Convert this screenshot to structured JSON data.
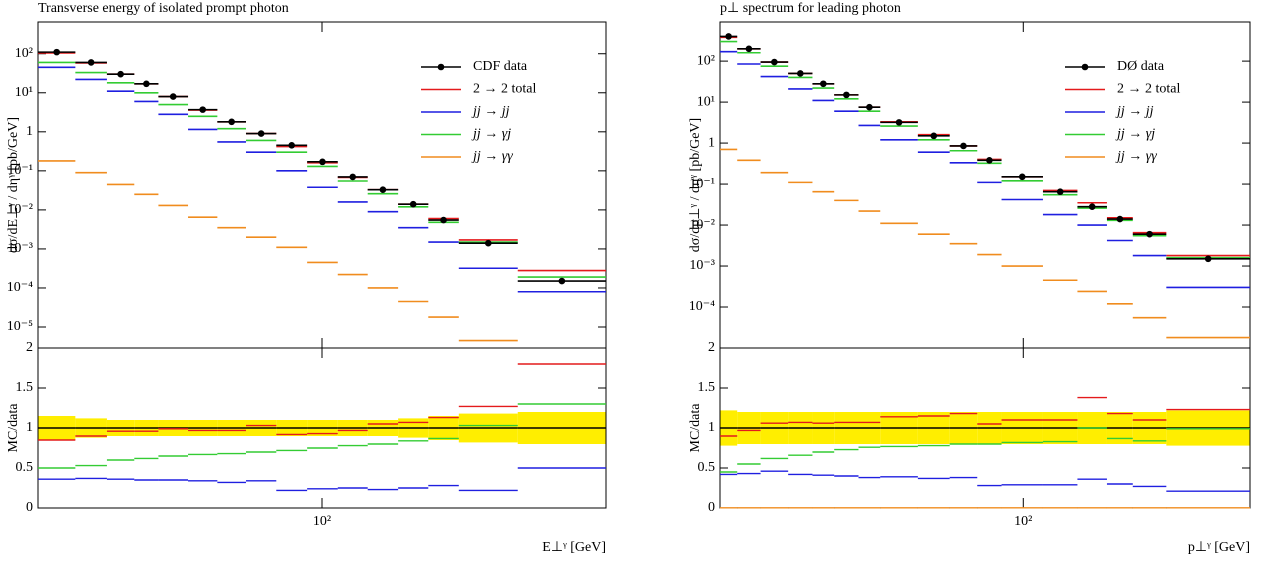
{
  "chart_data": [
    {
      "type": "histogram",
      "title": "Transverse energy of isolated prompt photon",
      "xlabel": "E⊥ᵞ [GeV]",
      "ylabel": "dσ/dE⊥ᵞ / dηᵞ [pb/GeV]",
      "log_x": true,
      "log_y": true,
      "legend": "upper right",
      "bins": [
        25,
        30,
        35,
        40,
        45,
        52,
        60,
        69,
        80,
        93,
        108,
        125,
        145,
        168,
        195,
        260,
        400
      ],
      "xlim": [
        25,
        400
      ],
      "xticks": [
        {
          "value": 100,
          "label": "10²"
        }
      ],
      "ylim": [
        2.9e-06,
        650
      ],
      "yticks": [
        {
          "value": 1e-05,
          "label": "10⁻⁵"
        },
        {
          "value": 0.0001,
          "label": "10⁻⁴"
        },
        {
          "value": 0.001,
          "label": "10⁻³"
        },
        {
          "value": 0.01,
          "label": "10⁻²"
        },
        {
          "value": 0.1,
          "label": "10⁻¹"
        },
        1,
        {
          "value": 10,
          "label": "10¹"
        },
        {
          "value": 100,
          "label": "10²"
        }
      ],
      "series": [
        {
          "name": "CDF data",
          "color": "#000000",
          "marker": true,
          "values": [
            110,
            60,
            30,
            17,
            8,
            3.7,
            1.8,
            0.9,
            0.45,
            0.17,
            0.07,
            0.033,
            0.014,
            0.0055,
            0.0014,
            0.00015
          ]
        },
        {
          "name": "2 → 2 total",
          "color": "#e41a1c",
          "values": [
            105,
            58,
            30,
            17,
            8,
            3.6,
            1.8,
            0.9,
            0.42,
            0.16,
            0.068,
            0.033,
            0.014,
            0.006,
            0.0017,
            0.00028
          ]
        },
        {
          "name": "jj → jj",
          "color": "#1f1fe0",
          "values": [
            45,
            22,
            11,
            6,
            2.8,
            1.15,
            0.55,
            0.3,
            0.1,
            0.038,
            0.016,
            0.009,
            0.0035,
            0.0015,
            0.00032,
            8e-05
          ]
        },
        {
          "name": "jj → γj",
          "color": "#33cc33",
          "values": [
            60,
            33,
            18,
            10,
            5,
            2.5,
            1.2,
            0.6,
            0.3,
            0.13,
            0.055,
            0.026,
            0.012,
            0.0048,
            0.0015,
            0.00019
          ]
        },
        {
          "name": "jj → γγ",
          "color": "#f08c1e",
          "values": [
            0.18,
            0.09,
            0.045,
            0.025,
            0.013,
            0.0065,
            0.0035,
            0.002,
            0.0011,
            0.00045,
            0.00022,
            0.0001,
            4.5e-05,
            1.8e-05,
            4.5e-06,
            null
          ]
        }
      ],
      "ratio": {
        "ylabel": "MC/data",
        "ylim": [
          0,
          2
        ],
        "yticks": [
          0,
          0.5,
          1,
          1.5,
          2
        ],
        "band": {
          "color": "#ffee00",
          "lower": [
            0.85,
            0.88,
            0.9,
            0.9,
            0.9,
            0.9,
            0.9,
            0.9,
            0.9,
            0.9,
            0.9,
            0.9,
            0.88,
            0.85,
            0.82,
            0.8
          ],
          "upper": [
            1.15,
            1.12,
            1.1,
            1.1,
            1.1,
            1.1,
            1.1,
            1.1,
            1.1,
            1.1,
            1.1,
            1.1,
            1.12,
            1.15,
            1.18,
            1.2
          ]
        },
        "series": [
          {
            "color": "#000000",
            "values": [
              1,
              1,
              1,
              1,
              1,
              1,
              1,
              1,
              1,
              1,
              1,
              1,
              1,
              1,
              1,
              1
            ]
          },
          {
            "color": "#e41a1c",
            "values": [
              0.85,
              0.9,
              0.96,
              0.96,
              0.99,
              0.97,
              0.97,
              1.03,
              0.92,
              0.93,
              0.97,
              1.05,
              1.07,
              1.13,
              1.27,
              1.8
            ]
          },
          {
            "color": "#1f1fe0",
            "values": [
              0.36,
              0.37,
              0.36,
              0.35,
              0.35,
              0.34,
              0.32,
              0.34,
              0.22,
              0.24,
              0.25,
              0.23,
              0.25,
              0.28,
              0.22,
              0.5
            ]
          },
          {
            "color": "#33cc33",
            "values": [
              0.5,
              0.53,
              0.6,
              0.62,
              0.65,
              0.67,
              0.68,
              0.7,
              0.72,
              0.75,
              0.78,
              0.8,
              0.84,
              0.87,
              1.03,
              1.3
            ]
          }
        ]
      }
    },
    {
      "type": "histogram",
      "title": "p⊥ spectrum for leading photon",
      "xlabel": "p⊥ᵞ [GeV]",
      "ylabel": "dσ/dp⊥ᵞ / dηᵞ [pb/GeV]",
      "log_x": true,
      "log_y": true,
      "legend": "upper right",
      "bins": [
        23,
        25,
        28,
        32,
        36,
        40,
        45,
        50,
        60,
        70,
        80,
        90,
        110,
        130,
        150,
        170,
        200,
        300
      ],
      "xlim": [
        23,
        300
      ],
      "xticks": [
        {
          "value": 100,
          "label": "10²"
        }
      ],
      "ylim": [
        1e-05,
        900
      ],
      "yticks": [
        {
          "value": 0.0001,
          "label": "10⁻⁴"
        },
        {
          "value": 0.001,
          "label": "10⁻³"
        },
        {
          "value": 0.01,
          "label": "10⁻²"
        },
        {
          "value": 0.1,
          "label": "10⁻¹"
        },
        1,
        {
          "value": 10,
          "label": "10¹"
        },
        {
          "value": 100,
          "label": "10²"
        }
      ],
      "series": [
        {
          "name": "DØ data",
          "color": "#000000",
          "marker": true,
          "values": [
            400,
            200,
            95,
            50,
            28,
            15,
            7.5,
            3.2,
            1.5,
            0.85,
            0.38,
            0.15,
            0.065,
            0.028,
            0.014,
            0.006,
            0.0015
          ]
        },
        {
          "name": "2 → 2 total",
          "color": "#e41a1c",
          "values": [
            380,
            200,
            95,
            50,
            28,
            15,
            7.5,
            3.3,
            1.6,
            0.85,
            0.4,
            0.15,
            0.07,
            0.035,
            0.015,
            0.0065,
            0.0018
          ]
        },
        {
          "name": "jj → jj",
          "color": "#1f1fe0",
          "values": [
            170,
            85,
            42,
            21,
            11,
            6,
            2.7,
            1.2,
            0.6,
            0.33,
            0.11,
            0.042,
            0.018,
            0.01,
            0.0042,
            0.0018,
            0.0003
          ]
        },
        {
          "name": "jj → γj",
          "color": "#33cc33",
          "values": [
            300,
            160,
            75,
            40,
            22,
            12,
            6,
            2.6,
            1.2,
            0.65,
            0.32,
            0.12,
            0.055,
            0.026,
            0.013,
            0.0055,
            0.0016
          ]
        },
        {
          "name": "jj → γγ",
          "color": "#f08c1e",
          "values": [
            0.7,
            0.38,
            0.19,
            0.11,
            0.065,
            0.04,
            0.022,
            0.011,
            0.006,
            0.0035,
            0.0019,
            0.001,
            0.00045,
            0.00024,
            0.00012,
            5.5e-05,
            1.8e-05
          ]
        }
      ],
      "ratio": {
        "ylabel": "MC/data",
        "ylim": [
          0,
          2
        ],
        "yticks": [
          0,
          0.5,
          1,
          1.5,
          2
        ],
        "band": {
          "color": "#ffee00",
          "lower": [
            0.78,
            0.8,
            0.8,
            0.8,
            0.8,
            0.8,
            0.8,
            0.8,
            0.8,
            0.8,
            0.8,
            0.8,
            0.8,
            0.8,
            0.8,
            0.8,
            0.78
          ],
          "upper": [
            1.22,
            1.2,
            1.2,
            1.2,
            1.2,
            1.2,
            1.2,
            1.2,
            1.2,
            1.2,
            1.2,
            1.2,
            1.2,
            1.2,
            1.2,
            1.2,
            1.22
          ]
        },
        "series": [
          {
            "color": "#000000",
            "values": [
              1,
              1,
              1,
              1,
              1,
              1,
              1,
              1,
              1,
              1,
              1,
              1,
              1,
              1,
              1,
              1,
              1
            ]
          },
          {
            "color": "#e41a1c",
            "values": [
              0.9,
              0.97,
              1.06,
              1.07,
              1.06,
              1.07,
              1.07,
              1.14,
              1.15,
              1.18,
              1.05,
              1.1,
              1.1,
              1.38,
              1.18,
              1.1,
              1.23
            ]
          },
          {
            "color": "#1f1fe0",
            "values": [
              0.42,
              0.43,
              0.46,
              0.42,
              0.41,
              0.4,
              0.38,
              0.39,
              0.37,
              0.38,
              0.28,
              0.29,
              0.29,
              0.36,
              0.3,
              0.27,
              0.21
            ]
          },
          {
            "color": "#33cc33",
            "values": [
              0.45,
              0.55,
              0.62,
              0.66,
              0.7,
              0.73,
              0.76,
              0.77,
              0.78,
              0.8,
              0.8,
              0.82,
              0.83,
              1.0,
              0.87,
              0.84,
              0.99
            ]
          },
          {
            "color": "#f08c1e",
            "values": [
              0.002,
              0.002,
              0.002,
              0.002,
              0.002,
              0.002,
              0.002,
              0.002,
              0.002,
              0.002,
              0.002,
              0.002,
              0.002,
              0.002,
              0.002,
              0.002,
              0.002
            ]
          }
        ]
      }
    }
  ]
}
